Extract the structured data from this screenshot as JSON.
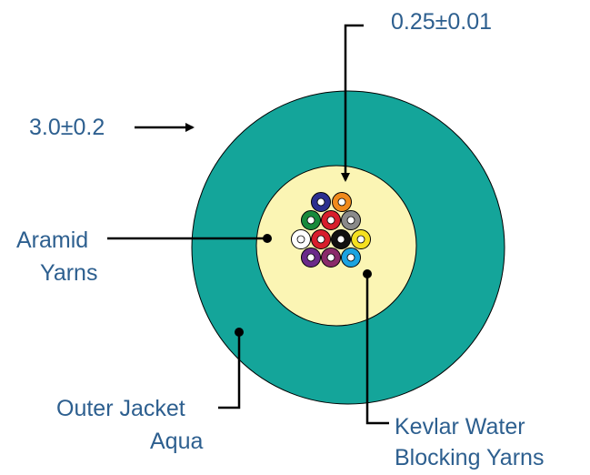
{
  "labels": {
    "fiber_diameter": "0.25±0.01",
    "outer_diameter": "3.0±0.2",
    "aramid": [
      "Aramid",
      "Yarns"
    ],
    "jacket": [
      "Outer Jacket",
      "Aqua"
    ],
    "kevlar": [
      "Kevlar Water",
      "Blocking Yarns"
    ]
  }
}
